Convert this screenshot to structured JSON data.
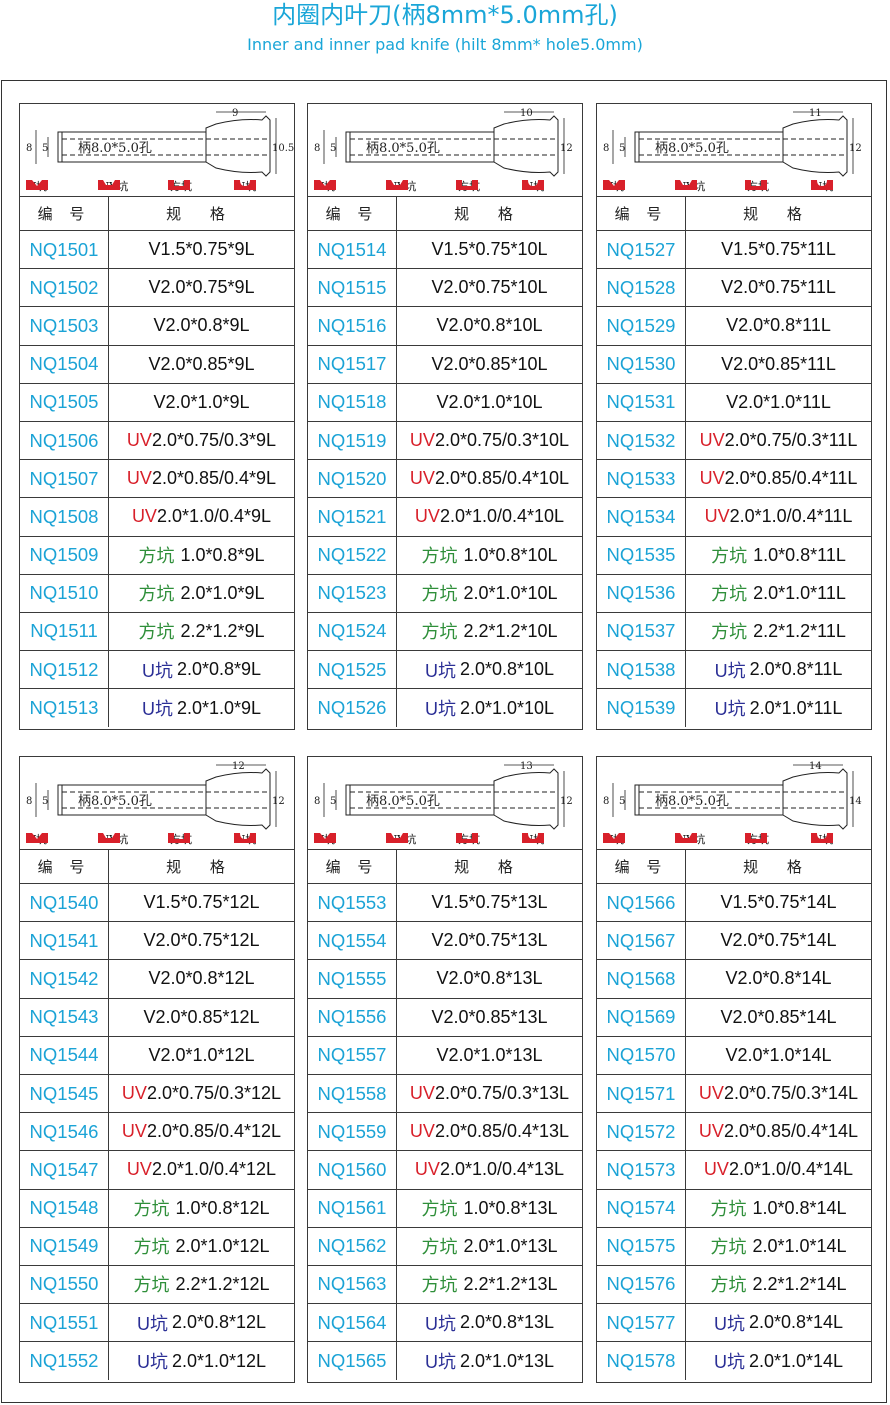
{
  "title_cn": "内圈内叶刀(柄8mm*5.0mm孔)",
  "title_en": "Inner and inner pad  knife (hilt 8mm* hole5.0mm)",
  "table_headers": {
    "code": "编 号",
    "spec": "规 格"
  },
  "legend": {
    "v": "V坑",
    "uv": "UV坑",
    "fk": "方坑",
    "uk": "U坑"
  },
  "colors": {
    "title": "#1aa6d8",
    "code": "#1ba3d6",
    "uv": "#d8202a",
    "fangkeng": "#2f8f3a",
    "ukeng": "#2b2f96",
    "legend_red": "#d8202a"
  },
  "panels": [
    {
      "diagram": {
        "hilt_label": "柄8.0*5.0孔",
        "dim_8": "8",
        "dim_5": "5",
        "top_dim": "9",
        "right_dim": "10.5"
      },
      "rows": [
        {
          "code": "NQ1501",
          "prefix": "",
          "spec": "V1.5*0.75*9L"
        },
        {
          "code": "NQ1502",
          "prefix": "",
          "spec": "V2.0*0.75*9L"
        },
        {
          "code": "NQ1503",
          "prefix": "",
          "spec": "V2.0*0.8*9L"
        },
        {
          "code": "NQ1504",
          "prefix": "",
          "spec": "V2.0*0.85*9L"
        },
        {
          "code": "NQ1505",
          "prefix": "",
          "spec": "V2.0*1.0*9L"
        },
        {
          "code": "NQ1506",
          "prefix": "UV",
          "spec": "2.0*0.75/0.3*9L"
        },
        {
          "code": "NQ1507",
          "prefix": "UV",
          "spec": "2.0*0.85/0.4*9L"
        },
        {
          "code": "NQ1508",
          "prefix": "UV",
          "spec": "2.0*1.0/0.4*9L"
        },
        {
          "code": "NQ1509",
          "prefix": "方坑",
          "spec": "1.0*0.8*9L"
        },
        {
          "code": "NQ1510",
          "prefix": "方坑",
          "spec": "2.0*1.0*9L"
        },
        {
          "code": "NQ1511",
          "prefix": "方坑",
          "spec": "2.2*1.2*9L"
        },
        {
          "code": "NQ1512",
          "prefix": "U坑",
          "spec": "2.0*0.8*9L"
        },
        {
          "code": "NQ1513",
          "prefix": "U坑",
          "spec": "2.0*1.0*9L"
        }
      ]
    },
    {
      "diagram": {
        "hilt_label": "柄8.0*5.0孔",
        "dim_8": "8",
        "dim_5": "5",
        "top_dim": "10",
        "right_dim": "12"
      },
      "rows": [
        {
          "code": "NQ1514",
          "prefix": "",
          "spec": "V1.5*0.75*10L"
        },
        {
          "code": "NQ1515",
          "prefix": "",
          "spec": "V2.0*0.75*10L"
        },
        {
          "code": "NQ1516",
          "prefix": "",
          "spec": "V2.0*0.8*10L"
        },
        {
          "code": "NQ1517",
          "prefix": "",
          "spec": "V2.0*0.85*10L"
        },
        {
          "code": "NQ1518",
          "prefix": "",
          "spec": "V2.0*1.0*10L"
        },
        {
          "code": "NQ1519",
          "prefix": "UV",
          "spec": "2.0*0.75/0.3*10L"
        },
        {
          "code": "NQ1520",
          "prefix": "UV",
          "spec": "2.0*0.85/0.4*10L"
        },
        {
          "code": "NQ1521",
          "prefix": "UV",
          "spec": "2.0*1.0/0.4*10L"
        },
        {
          "code": "NQ1522",
          "prefix": "方坑",
          "spec": "1.0*0.8*10L"
        },
        {
          "code": "NQ1523",
          "prefix": "方坑",
          "spec": "2.0*1.0*10L"
        },
        {
          "code": "NQ1524",
          "prefix": "方坑",
          "spec": "2.2*1.2*10L"
        },
        {
          "code": "NQ1525",
          "prefix": "U坑",
          "spec": "2.0*0.8*10L"
        },
        {
          "code": "NQ1526",
          "prefix": "U坑",
          "spec": "2.0*1.0*10L"
        }
      ]
    },
    {
      "diagram": {
        "hilt_label": "柄8.0*5.0孔",
        "dim_8": "8",
        "dim_5": "5",
        "top_dim": "11",
        "right_dim": "12"
      },
      "rows": [
        {
          "code": "NQ1527",
          "prefix": "",
          "spec": "V1.5*0.75*11L"
        },
        {
          "code": "NQ1528",
          "prefix": "",
          "spec": "V2.0*0.75*11L"
        },
        {
          "code": "NQ1529",
          "prefix": "",
          "spec": "V2.0*0.8*11L"
        },
        {
          "code": "NQ1530",
          "prefix": "",
          "spec": "V2.0*0.85*11L"
        },
        {
          "code": "NQ1531",
          "prefix": "",
          "spec": "V2.0*1.0*11L"
        },
        {
          "code": "NQ1532",
          "prefix": "UV",
          "spec": "2.0*0.75/0.3*11L"
        },
        {
          "code": "NQ1533",
          "prefix": "UV",
          "spec": "2.0*0.85/0.4*11L"
        },
        {
          "code": "NQ1534",
          "prefix": "UV",
          "spec": "2.0*1.0/0.4*11L"
        },
        {
          "code": "NQ1535",
          "prefix": "方坑",
          "spec": "1.0*0.8*11L"
        },
        {
          "code": "NQ1536",
          "prefix": "方坑",
          "spec": "2.0*1.0*11L"
        },
        {
          "code": "NQ1537",
          "prefix": "方坑",
          "spec": "2.2*1.2*11L"
        },
        {
          "code": "NQ1538",
          "prefix": "U坑",
          "spec": "2.0*0.8*11L"
        },
        {
          "code": "NQ1539",
          "prefix": "U坑",
          "spec": "2.0*1.0*11L"
        }
      ]
    },
    {
      "diagram": {
        "hilt_label": "柄8.0*5.0孔",
        "dim_8": "8",
        "dim_5": "5",
        "top_dim": "12",
        "right_dim": "12"
      },
      "rows": [
        {
          "code": "NQ1540",
          "prefix": "",
          "spec": "V1.5*0.75*12L"
        },
        {
          "code": "NQ1541",
          "prefix": "",
          "spec": "V2.0*0.75*12L"
        },
        {
          "code": "NQ1542",
          "prefix": "",
          "spec": "V2.0*0.8*12L"
        },
        {
          "code": "NQ1543",
          "prefix": "",
          "spec": "V2.0*0.85*12L"
        },
        {
          "code": "NQ1544",
          "prefix": "",
          "spec": "V2.0*1.0*12L"
        },
        {
          "code": "NQ1545",
          "prefix": "UV",
          "spec": "2.0*0.75/0.3*12L"
        },
        {
          "code": "NQ1546",
          "prefix": "UV",
          "spec": "2.0*0.85/0.4*12L"
        },
        {
          "code": "NQ1547",
          "prefix": "UV",
          "spec": "2.0*1.0/0.4*12L"
        },
        {
          "code": "NQ1548",
          "prefix": "方坑",
          "spec": "1.0*0.8*12L"
        },
        {
          "code": "NQ1549",
          "prefix": "方坑",
          "spec": "2.0*1.0*12L"
        },
        {
          "code": "NQ1550",
          "prefix": "方坑",
          "spec": "2.2*1.2*12L"
        },
        {
          "code": "NQ1551",
          "prefix": "U坑",
          "spec": "2.0*0.8*12L"
        },
        {
          "code": "NQ1552",
          "prefix": "U坑",
          "spec": "2.0*1.0*12L"
        }
      ]
    },
    {
      "diagram": {
        "hilt_label": "柄8.0*5.0孔",
        "dim_8": "8",
        "dim_5": "5",
        "top_dim": "13",
        "right_dim": "12"
      },
      "rows": [
        {
          "code": "NQ1553",
          "prefix": "",
          "spec": "V1.5*0.75*13L"
        },
        {
          "code": "NQ1554",
          "prefix": "",
          "spec": "V2.0*0.75*13L"
        },
        {
          "code": "NQ1555",
          "prefix": "",
          "spec": "V2.0*0.8*13L"
        },
        {
          "code": "NQ1556",
          "prefix": "",
          "spec": "V2.0*0.85*13L"
        },
        {
          "code": "NQ1557",
          "prefix": "",
          "spec": "V2.0*1.0*13L"
        },
        {
          "code": "NQ1558",
          "prefix": "UV",
          "spec": "2.0*0.75/0.3*13L"
        },
        {
          "code": "NQ1559",
          "prefix": "UV",
          "spec": "2.0*0.85/0.4*13L"
        },
        {
          "code": "NQ1560",
          "prefix": "UV",
          "spec": "2.0*1.0/0.4*13L"
        },
        {
          "code": "NQ1561",
          "prefix": "方坑",
          "spec": "1.0*0.8*13L"
        },
        {
          "code": "NQ1562",
          "prefix": "方坑",
          "spec": "2.0*1.0*13L"
        },
        {
          "code": "NQ1563",
          "prefix": "方坑",
          "spec": "2.2*1.2*13L"
        },
        {
          "code": "NQ1564",
          "prefix": "U坑",
          "spec": "2.0*0.8*13L"
        },
        {
          "code": "NQ1565",
          "prefix": "U坑",
          "spec": "2.0*1.0*13L"
        }
      ]
    },
    {
      "diagram": {
        "hilt_label": "柄8.0*5.0孔",
        "dim_8": "8",
        "dim_5": "5",
        "top_dim": "14",
        "right_dim": "14"
      },
      "rows": [
        {
          "code": "NQ1566",
          "prefix": "",
          "spec": "V1.5*0.75*14L"
        },
        {
          "code": "NQ1567",
          "prefix": "",
          "spec": "V2.0*0.75*14L"
        },
        {
          "code": "NQ1568",
          "prefix": "",
          "spec": "V2.0*0.8*14L"
        },
        {
          "code": "NQ1569",
          "prefix": "",
          "spec": "V2.0*0.85*14L"
        },
        {
          "code": "NQ1570",
          "prefix": "",
          "spec": "V2.0*1.0*14L"
        },
        {
          "code": "NQ1571",
          "prefix": "UV",
          "spec": "2.0*0.75/0.3*14L"
        },
        {
          "code": "NQ1572",
          "prefix": "UV",
          "spec": "2.0*0.85/0.4*14L"
        },
        {
          "code": "NQ1573",
          "prefix": "UV",
          "spec": "2.0*1.0/0.4*14L"
        },
        {
          "code": "NQ1574",
          "prefix": "方坑",
          "spec": "1.0*0.8*14L"
        },
        {
          "code": "NQ1575",
          "prefix": "方坑",
          "spec": "2.0*1.0*14L"
        },
        {
          "code": "NQ1576",
          "prefix": "方坑",
          "spec": "2.2*1.2*14L"
        },
        {
          "code": "NQ1577",
          "prefix": "U坑",
          "spec": "2.0*0.8*14L"
        },
        {
          "code": "NQ1578",
          "prefix": "U坑",
          "spec": "2.0*1.0*14L"
        }
      ]
    }
  ]
}
